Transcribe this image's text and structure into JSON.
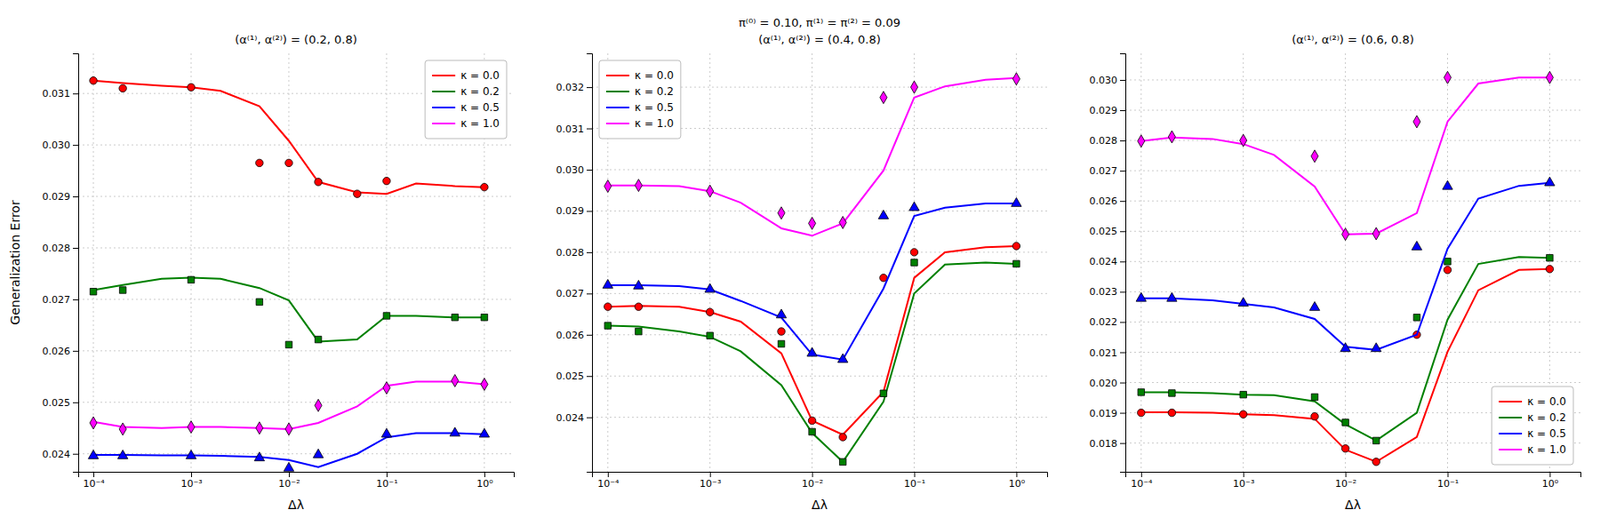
{
  "chart_data": [
    {
      "type": "line",
      "title": "(α⁽¹⁾, α⁽²⁾) = (0.2, 0.8)",
      "xlabel": "Δλ",
      "ylabel": "Generalization Error",
      "log": "x",
      "grid": true,
      "legend": "upper right",
      "xlim": [
        7e-05,
        2.0
      ],
      "xticks": [
        {
          "value": 0.0001,
          "label": "10⁻⁴"
        },
        {
          "value": 0.001,
          "label": "10⁻³"
        },
        {
          "value": 0.01,
          "label": "10⁻²"
        },
        {
          "value": 0.1,
          "label": "10⁻¹"
        },
        {
          "value": 1,
          "label": "10⁰"
        }
      ],
      "ylim": [
        0.02365,
        0.03178
      ],
      "yticks": [
        0.024,
        0.025,
        0.026,
        0.027,
        0.028,
        0.029,
        {
          "value": 0.03,
          "label": "0.030"
        },
        0.031
      ],
      "series": [
        {
          "name": "κ = 0.0",
          "type": "line",
          "color": "red",
          "x": [
            0.0001,
            0.0002,
            0.0005,
            0.001,
            0.002,
            0.005,
            0.01,
            0.02,
            0.05,
            0.1,
            0.2,
            0.5,
            1
          ],
          "values": [
            0.03125,
            0.0312,
            0.03115,
            0.03112,
            0.03105,
            0.03075,
            0.03008,
            0.02928,
            0.02908,
            0.02905,
            0.02925,
            0.0292,
            0.02918
          ]
        },
        {
          "type": "scatter",
          "color": "red",
          "marker": "circle",
          "x": [
            0.0001,
            0.0002,
            0.001,
            0.005,
            0.01,
            0.02,
            0.05,
            0.1,
            1
          ],
          "values": [
            0.03125,
            0.0311,
            0.03112,
            0.02965,
            0.02965,
            0.02928,
            0.02905,
            0.0293,
            0.02918
          ]
        },
        {
          "name": "κ = 0.2",
          "type": "line",
          "color": "green",
          "x": [
            0.0001,
            0.0002,
            0.0005,
            0.001,
            0.002,
            0.005,
            0.01,
            0.02,
            0.05,
            0.1,
            0.2,
            0.5,
            1
          ],
          "values": [
            0.02718,
            0.02728,
            0.0274,
            0.02742,
            0.0274,
            0.02722,
            0.02698,
            0.02618,
            0.02622,
            0.02668,
            0.02668,
            0.02665,
            0.02665
          ]
        },
        {
          "type": "scatter",
          "color": "green",
          "marker": "square",
          "x": [
            0.0001,
            0.0002,
            0.001,
            0.005,
            0.01,
            0.02,
            0.1,
            0.5,
            1
          ],
          "values": [
            0.02715,
            0.02718,
            0.02738,
            0.02695,
            0.02612,
            0.02622,
            0.02668,
            0.02665,
            0.02665
          ]
        },
        {
          "name": "κ = 0.5",
          "type": "line",
          "color": "blue",
          "x": [
            0.0001,
            0.0002,
            0.0005,
            0.001,
            0.002,
            0.005,
            0.01,
            0.02,
            0.05,
            0.1,
            0.2,
            0.5,
            1
          ],
          "values": [
            0.02398,
            0.02398,
            0.02397,
            0.02397,
            0.02396,
            0.02394,
            0.02388,
            0.02374,
            0.024,
            0.02432,
            0.0244,
            0.0244,
            0.02438
          ]
        },
        {
          "type": "scatter",
          "color": "blue",
          "marker": "triangle",
          "x": [
            0.0001,
            0.0002,
            0.001,
            0.005,
            0.01,
            0.02,
            0.1,
            0.5,
            1
          ],
          "values": [
            0.02396,
            0.02396,
            0.02396,
            0.02392,
            0.02372,
            0.02398,
            0.02438,
            0.0244,
            0.02438
          ]
        },
        {
          "name": "κ = 1.0",
          "type": "line",
          "color": "magenta",
          "x": [
            0.0001,
            0.0002,
            0.0005,
            0.001,
            0.002,
            0.005,
            0.01,
            0.02,
            0.05,
            0.1,
            0.2,
            0.5,
            1
          ],
          "values": [
            0.02462,
            0.02452,
            0.0245,
            0.02452,
            0.02452,
            0.0245,
            0.02448,
            0.0246,
            0.02492,
            0.02532,
            0.0254,
            0.0254,
            0.02535
          ]
        },
        {
          "type": "scatter",
          "color": "magenta",
          "marker": "diamond",
          "x": [
            0.0001,
            0.0002,
            0.001,
            0.005,
            0.01,
            0.02,
            0.1,
            0.5,
            1
          ],
          "values": [
            0.0246,
            0.02448,
            0.02452,
            0.0245,
            0.02448,
            0.02494,
            0.02528,
            0.02542,
            0.02535
          ]
        }
      ]
    },
    {
      "type": "line",
      "title": "π⁽⁰⁾ = 0.10, π⁽¹⁾ = π⁽²⁾ = 0.09",
      "subtitle": "(α⁽¹⁾, α⁽²⁾) = (0.4, 0.8)",
      "xlabel": "Δλ",
      "log": "x",
      "grid": true,
      "legend": "upper left",
      "xlim": [
        7e-05,
        2.0
      ],
      "xticks": [
        {
          "value": 0.0001,
          "label": "10⁻⁴"
        },
        {
          "value": 0.001,
          "label": "10⁻³"
        },
        {
          "value": 0.01,
          "label": "10⁻²"
        },
        {
          "value": 0.1,
          "label": "10⁻¹"
        },
        {
          "value": 1,
          "label": "10⁰"
        }
      ],
      "ylim": [
        0.02268,
        0.03282
      ],
      "yticks": [
        0.024,
        0.025,
        0.026,
        0.027,
        0.028,
        0.029,
        {
          "value": 0.03,
          "label": "0.030"
        },
        0.031,
        0.032
      ],
      "series": [
        {
          "name": "κ = 0.0",
          "type": "line",
          "color": "red",
          "x": [
            0.0001,
            0.0002,
            0.0005,
            0.001,
            0.002,
            0.005,
            0.01,
            0.02,
            0.05,
            0.1,
            0.2,
            0.5,
            1
          ],
          "values": [
            0.02668,
            0.0267,
            0.02668,
            0.02655,
            0.02632,
            0.02555,
            0.02392,
            0.02358,
            0.02462,
            0.02738,
            0.028,
            0.02812,
            0.02815
          ]
        },
        {
          "type": "scatter",
          "color": "red",
          "marker": "circle",
          "x": [
            0.0001,
            0.0002,
            0.001,
            0.005,
            0.01,
            0.02,
            0.05,
            0.1,
            1
          ],
          "values": [
            0.02668,
            0.02668,
            0.02655,
            0.02608,
            0.02392,
            0.02352,
            0.02738,
            0.028,
            0.02815
          ]
        },
        {
          "name": "κ = 0.2",
          "type": "line",
          "color": "green",
          "x": [
            0.0001,
            0.0002,
            0.0005,
            0.001,
            0.002,
            0.005,
            0.01,
            0.02,
            0.05,
            0.1,
            0.2,
            0.5,
            1
          ],
          "values": [
            0.02622,
            0.0262,
            0.02608,
            0.02595,
            0.0256,
            0.02478,
            0.02362,
            0.02292,
            0.02438,
            0.027,
            0.0277,
            0.02775,
            0.02772
          ]
        },
        {
          "type": "scatter",
          "color": "green",
          "marker": "square",
          "x": [
            0.0001,
            0.0002,
            0.001,
            0.005,
            0.01,
            0.02,
            0.05,
            0.1,
            1
          ],
          "values": [
            0.02622,
            0.02608,
            0.02598,
            0.02578,
            0.02365,
            0.02292,
            0.02458,
            0.02775,
            0.02772
          ]
        },
        {
          "name": "κ = 0.5",
          "type": "line",
          "color": "blue",
          "x": [
            0.0001,
            0.0002,
            0.0005,
            0.001,
            0.002,
            0.005,
            0.01,
            0.02,
            0.05,
            0.1,
            0.2,
            0.5,
            1
          ],
          "values": [
            0.0272,
            0.0272,
            0.02718,
            0.0271,
            0.02682,
            0.02642,
            0.02552,
            0.0254,
            0.02712,
            0.02888,
            0.02908,
            0.02918,
            0.02918
          ]
        },
        {
          "type": "scatter",
          "color": "blue",
          "marker": "triangle",
          "x": [
            0.0001,
            0.0002,
            0.001,
            0.005,
            0.01,
            0.02,
            0.05,
            0.1,
            1
          ],
          "values": [
            0.0272,
            0.02718,
            0.0271,
            0.02648,
            0.02555,
            0.0254,
            0.02888,
            0.02908,
            0.02918
          ]
        },
        {
          "name": "κ = 1.0",
          "type": "line",
          "color": "magenta",
          "x": [
            0.0001,
            0.0002,
            0.0005,
            0.001,
            0.002,
            0.005,
            0.01,
            0.02,
            0.05,
            0.1,
            0.2,
            0.5,
            1
          ],
          "values": [
            0.02962,
            0.02962,
            0.0296,
            0.02948,
            0.0292,
            0.02858,
            0.0284,
            0.0287,
            0.02998,
            0.03175,
            0.03202,
            0.03218,
            0.03222
          ]
        },
        {
          "type": "scatter",
          "color": "magenta",
          "marker": "diamond",
          "x": [
            0.0001,
            0.0002,
            0.001,
            0.005,
            0.01,
            0.02,
            0.05,
            0.1,
            1
          ],
          "values": [
            0.0296,
            0.02962,
            0.02948,
            0.02895,
            0.0287,
            0.02872,
            0.03175,
            0.032,
            0.0322
          ]
        }
      ]
    },
    {
      "type": "line",
      "title": "(α⁽¹⁾, α⁽²⁾) = (0.6, 0.8)",
      "xlabel": "Δλ",
      "log": "x",
      "grid": true,
      "legend": "lower right",
      "xlim": [
        7e-05,
        2.0
      ],
      "xticks": [
        {
          "value": 0.0001,
          "label": "10⁻⁴"
        },
        {
          "value": 0.001,
          "label": "10⁻³"
        },
        {
          "value": 0.01,
          "label": "10⁻²"
        },
        {
          "value": 0.1,
          "label": "10⁻¹"
        },
        {
          "value": 1,
          "label": "10⁰"
        }
      ],
      "ylim": [
        0.01705,
        0.03088
      ],
      "yticks": [
        0.018,
        0.019,
        {
          "value": 0.02,
          "label": "0.020"
        },
        0.021,
        0.022,
        0.023,
        0.024,
        0.025,
        0.026,
        0.027,
        0.028,
        0.029,
        {
          "value": 0.03,
          "label": "0.030"
        }
      ],
      "series": [
        {
          "name": "κ = 0.0",
          "type": "line",
          "color": "red",
          "x": [
            0.0001,
            0.0002,
            0.0005,
            0.001,
            0.002,
            0.005,
            0.01,
            0.02,
            0.05,
            0.1,
            0.2,
            0.5,
            1
          ],
          "values": [
            0.01902,
            0.01902,
            0.019,
            0.01895,
            0.01892,
            0.0188,
            0.01778,
            0.01738,
            0.0182,
            0.02102,
            0.02305,
            0.02372,
            0.02375
          ]
        },
        {
          "type": "scatter",
          "color": "red",
          "marker": "circle",
          "x": [
            0.0001,
            0.0002,
            0.001,
            0.005,
            0.01,
            0.02,
            0.05,
            0.1,
            1
          ],
          "values": [
            0.019,
            0.019,
            0.01895,
            0.01888,
            0.01782,
            0.01738,
            0.02158,
            0.02372,
            0.02375
          ]
        },
        {
          "name": "κ = 0.2",
          "type": "line",
          "color": "green",
          "x": [
            0.0001,
            0.0002,
            0.0005,
            0.001,
            0.002,
            0.005,
            0.01,
            0.02,
            0.05,
            0.1,
            0.2,
            0.5,
            1
          ],
          "values": [
            0.01968,
            0.01968,
            0.01965,
            0.0196,
            0.01958,
            0.01938,
            0.01862,
            0.01808,
            0.019,
            0.02208,
            0.02392,
            0.02415,
            0.02412
          ]
        },
        {
          "type": "scatter",
          "color": "green",
          "marker": "square",
          "x": [
            0.0001,
            0.0002,
            0.001,
            0.005,
            0.01,
            0.02,
            0.05,
            0.1,
            1
          ],
          "values": [
            0.01968,
            0.01965,
            0.0196,
            0.01952,
            0.01868,
            0.01808,
            0.02215,
            0.024,
            0.02412
          ]
        },
        {
          "name": "κ = 0.5",
          "type": "line",
          "color": "blue",
          "x": [
            0.0001,
            0.0002,
            0.0005,
            0.001,
            0.002,
            0.005,
            0.01,
            0.02,
            0.05,
            0.1,
            0.2,
            0.5,
            1
          ],
          "values": [
            0.02278,
            0.02278,
            0.02272,
            0.0226,
            0.02248,
            0.0221,
            0.02118,
            0.02108,
            0.02158,
            0.02442,
            0.02608,
            0.0265,
            0.0266
          ]
        },
        {
          "type": "scatter",
          "color": "blue",
          "marker": "triangle",
          "x": [
            0.0001,
            0.0002,
            0.001,
            0.005,
            0.01,
            0.02,
            0.05,
            0.1,
            1
          ],
          "values": [
            0.02278,
            0.02278,
            0.02262,
            0.02248,
            0.02112,
            0.02112,
            0.02448,
            0.02648,
            0.0266
          ]
        },
        {
          "name": "κ = 1.0",
          "type": "line",
          "color": "magenta",
          "x": [
            0.0001,
            0.0002,
            0.0005,
            0.001,
            0.002,
            0.005,
            0.01,
            0.02,
            0.05,
            0.1,
            0.2,
            0.5,
            1
          ],
          "values": [
            0.02798,
            0.0281,
            0.02805,
            0.02788,
            0.02752,
            0.02648,
            0.0249,
            0.02492,
            0.0256,
            0.02862,
            0.02988,
            0.03008,
            0.03008
          ]
        },
        {
          "type": "scatter",
          "color": "magenta",
          "marker": "diamond",
          "x": [
            0.0001,
            0.0002,
            0.001,
            0.005,
            0.01,
            0.02,
            0.05,
            0.1,
            1
          ],
          "values": [
            0.02798,
            0.02812,
            0.028,
            0.02748,
            0.0249,
            0.02492,
            0.02862,
            0.03008,
            0.03008
          ]
        }
      ]
    }
  ]
}
